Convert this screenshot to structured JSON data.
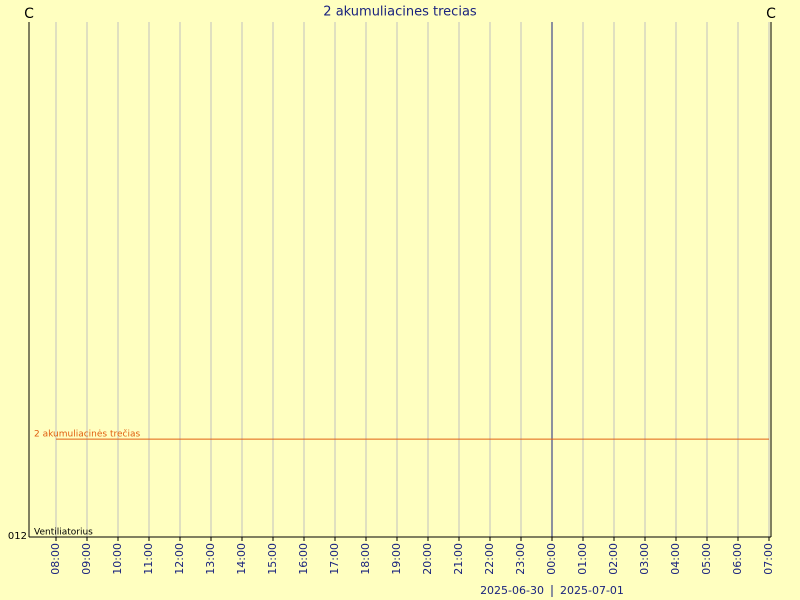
{
  "chart_data": {
    "type": "line",
    "title": "2 akumuliacines trecias",
    "unit_left": "C",
    "unit_right": "C",
    "corner_label": "012",
    "x": [
      "08:00",
      "09:00",
      "10:00",
      "11:00",
      "12:00",
      "13:00",
      "14:00",
      "15:00",
      "16:00",
      "17:00",
      "18:00",
      "19:00",
      "20:00",
      "21:00",
      "22:00",
      "23:00",
      "00:00",
      "01:00",
      "02:00",
      "03:00",
      "04:00",
      "05:00",
      "06:00",
      "07:00"
    ],
    "ylim": [
      0,
      100
    ],
    "series": [
      {
        "name": "2 akumuliacinės trečias",
        "color": "#e06010",
        "values": [
          19,
          19,
          19,
          19,
          19,
          19,
          19,
          19,
          19,
          19,
          19,
          19,
          19,
          19,
          19,
          19,
          19,
          19,
          19,
          19,
          19,
          19,
          19,
          19
        ]
      },
      {
        "name": "Ventiliatorius",
        "color": "#000000",
        "values": [
          0,
          0,
          0,
          0,
          0,
          0,
          0,
          0,
          0,
          0,
          0,
          0,
          0,
          0,
          0,
          0,
          0,
          0,
          0,
          0,
          0,
          0,
          0,
          0
        ]
      }
    ],
    "dates": [
      "2025-06-30",
      "2025-07-01"
    ],
    "grid": true
  }
}
